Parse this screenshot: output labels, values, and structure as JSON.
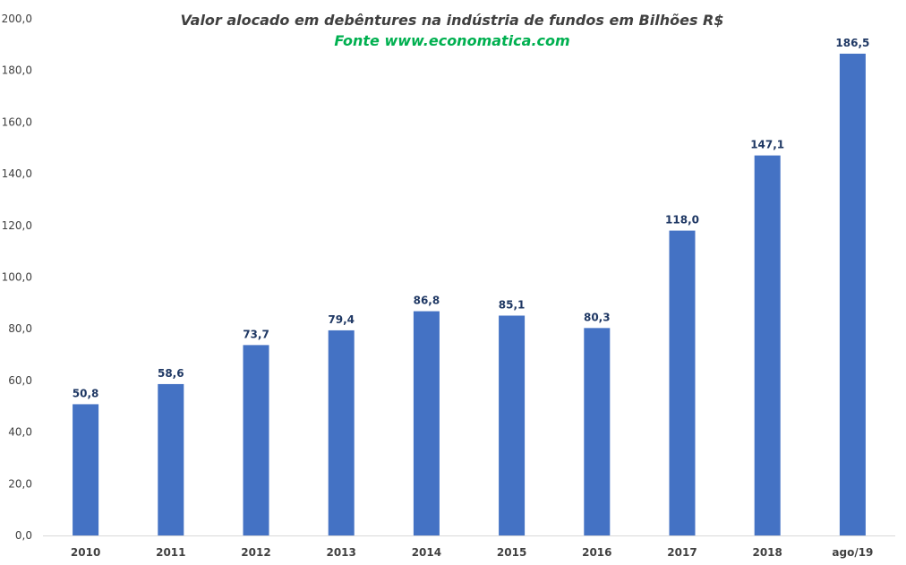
{
  "chart_data": {
    "type": "bar",
    "title": "Valor alocado em debêntures na indústria de fundos em Bilhões R$",
    "subtitle": "Fonte www.economatica.com",
    "categories": [
      "2010",
      "2011",
      "2012",
      "2013",
      "2014",
      "2015",
      "2016",
      "2017",
      "2018",
      "ago/19"
    ],
    "values": [
      50.8,
      58.6,
      73.7,
      79.4,
      86.8,
      85.1,
      80.3,
      118.0,
      147.1,
      186.5
    ],
    "data_labels": [
      "50,8",
      "58,6",
      "73,7",
      "79,4",
      "86,8",
      "85,1",
      "80,3",
      "118,0",
      "147,1",
      "186,5"
    ],
    "y_ticks": [
      "0,0",
      "20,0",
      "40,0",
      "60,0",
      "80,0",
      "100,0",
      "120,0",
      "140,0",
      "160,0",
      "180,0",
      "200,0"
    ],
    "ylim": [
      0,
      200
    ],
    "xlabel": "",
    "ylabel": "",
    "grid": false,
    "legend": "none",
    "colors": {
      "bar": "#4472c4",
      "data_label": "#1f3864",
      "title": "#404040",
      "subtitle": "#00b050",
      "axis": "#d9d9d9"
    }
  }
}
